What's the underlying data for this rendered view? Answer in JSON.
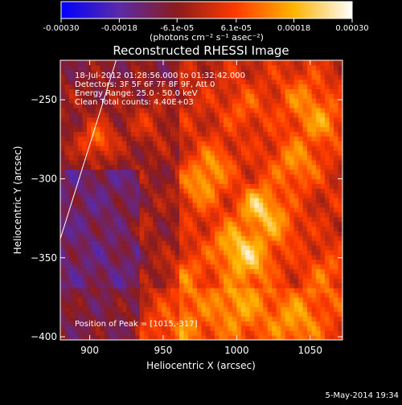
{
  "chart_data": {
    "type": "heatmap",
    "title": "Reconstructed RHESSI Image",
    "xlabel": "Heliocentric X (arcsec)",
    "ylabel": "Heliocentric Y (arcsec)",
    "xlim": [
      880,
      1072
    ],
    "ylim": [
      -402,
      -225
    ],
    "x_ticks": [
      900,
      950,
      1000,
      1050
    ],
    "y_ticks": [
      -250,
      -300,
      -350,
      -400
    ],
    "colorbar": {
      "range": [
        -0.0003,
        0.0003
      ],
      "tick_values": [
        -0.0003,
        -0.00018,
        -6.1e-05,
        6.1e-05,
        0.00018,
        0.0003
      ],
      "tick_labels": [
        "-0.00030",
        "-0.00018",
        "-6.1e-05",
        "6.1e-05",
        "0.00018",
        "0.00030"
      ],
      "unit_label": "(photons cm⁻² s⁻¹ asec⁻²)",
      "colors": [
        "#0000ff",
        "#5a2aa8",
        "#8b1b1b",
        "#ff3a00",
        "#ffb400",
        "#ffffff"
      ]
    },
    "annotations": [
      "18-Jul-2012 01:28:56.000 to 01:32:42.000",
      "Detectors: 3F 5F 6F 7F 8F 9F, Att 0",
      "Energy Range: 25.0 - 50.0 keV",
      "Clean     Total counts: 4.40E+03"
    ],
    "peak_label": "Position of Peak = [1015,-317]",
    "peak": [
      1015,
      -317
    ],
    "limb_line": [
      [
        880,
        -338
      ],
      [
        918,
        -225
      ]
    ]
  },
  "footer": {
    "timestamp": "5-May-2014 19:34"
  }
}
